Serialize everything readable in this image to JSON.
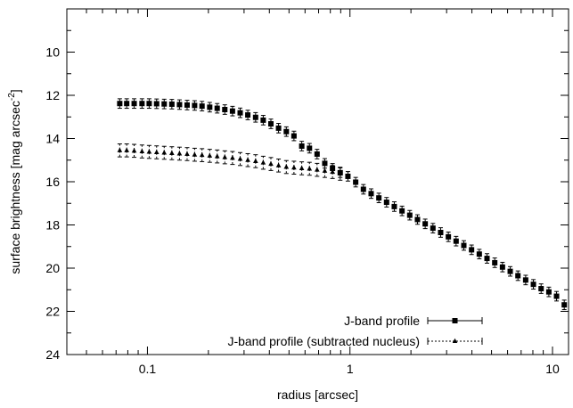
{
  "chart_data": {
    "type": "scatter",
    "xscale": "log",
    "yinverted": true,
    "xlim": [
      0.04,
      12
    ],
    "ylim": [
      24,
      8
    ],
    "grid": false,
    "legend_position": "bottom-right",
    "xlabel": "radius [arcsec]",
    "ylabel_main": "surface brightness [mag arcsec",
    "ylabel_sup": "-2",
    "ylabel_end": "]",
    "xticks": [
      {
        "value": 0.1,
        "label": "0.1"
      },
      {
        "value": 1,
        "label": "1"
      },
      {
        "value": 10,
        "label": "10"
      }
    ],
    "yticks": [
      {
        "value": 10,
        "label": "10"
      },
      {
        "value": 12,
        "label": "12"
      },
      {
        "value": 14,
        "label": "14"
      },
      {
        "value": 16,
        "label": "16"
      },
      {
        "value": 18,
        "label": "18"
      },
      {
        "value": 20,
        "label": "20"
      },
      {
        "value": 22,
        "label": "22"
      },
      {
        "value": 24,
        "label": "24"
      }
    ],
    "series": [
      {
        "name": "J-band profile",
        "marker": "square",
        "line": "solid",
        "error_y": 0.22,
        "points": [
          [
            0.073,
            12.38
          ],
          [
            0.079,
            12.38
          ],
          [
            0.086,
            12.38
          ],
          [
            0.094,
            12.38
          ],
          [
            0.102,
            12.38
          ],
          [
            0.111,
            12.39
          ],
          [
            0.121,
            12.4
          ],
          [
            0.132,
            12.41
          ],
          [
            0.144,
            12.43
          ],
          [
            0.157,
            12.45
          ],
          [
            0.171,
            12.47
          ],
          [
            0.186,
            12.5
          ],
          [
            0.203,
            12.55
          ],
          [
            0.221,
            12.6
          ],
          [
            0.241,
            12.66
          ],
          [
            0.263,
            12.73
          ],
          [
            0.287,
            12.81
          ],
          [
            0.313,
            12.91
          ],
          [
            0.342,
            13.02
          ],
          [
            0.373,
            13.15
          ],
          [
            0.407,
            13.32
          ],
          [
            0.444,
            13.52
          ],
          [
            0.485,
            13.68
          ],
          [
            0.529,
            13.88
          ],
          [
            0.578,
            14.35
          ],
          [
            0.631,
            14.45
          ],
          [
            0.688,
            14.72
          ],
          [
            0.751,
            15.15
          ],
          [
            0.82,
            15.38
          ],
          [
            0.895,
            15.58
          ],
          [
            0.977,
            15.75
          ],
          [
            1.067,
            16.02
          ],
          [
            1.165,
            16.35
          ],
          [
            1.272,
            16.55
          ],
          [
            1.389,
            16.75
          ],
          [
            1.516,
            16.95
          ],
          [
            1.655,
            17.15
          ],
          [
            1.807,
            17.35
          ],
          [
            1.973,
            17.55
          ],
          [
            2.154,
            17.75
          ],
          [
            2.352,
            17.95
          ],
          [
            2.568,
            18.15
          ],
          [
            2.803,
            18.35
          ],
          [
            3.061,
            18.55
          ],
          [
            3.342,
            18.75
          ],
          [
            3.649,
            18.95
          ],
          [
            3.984,
            19.15
          ],
          [
            4.35,
            19.35
          ],
          [
            4.749,
            19.55
          ],
          [
            5.186,
            19.75
          ],
          [
            5.662,
            19.95
          ],
          [
            6.182,
            20.15
          ],
          [
            6.75,
            20.35
          ],
          [
            7.37,
            20.55
          ],
          [
            8.047,
            20.75
          ],
          [
            8.786,
            20.95
          ],
          [
            9.593,
            21.1
          ],
          [
            10.47,
            21.3
          ],
          [
            11.43,
            21.7
          ]
        ]
      },
      {
        "name": "J-band profile (subtracted nucleus)",
        "marker": "triangle",
        "line": "dashed",
        "error_y": 0.3,
        "points": [
          [
            0.073,
            14.55
          ],
          [
            0.079,
            14.55
          ],
          [
            0.086,
            14.57
          ],
          [
            0.094,
            14.6
          ],
          [
            0.102,
            14.62
          ],
          [
            0.111,
            14.64
          ],
          [
            0.121,
            14.66
          ],
          [
            0.132,
            14.68
          ],
          [
            0.144,
            14.7
          ],
          [
            0.157,
            14.72
          ],
          [
            0.171,
            14.75
          ],
          [
            0.186,
            14.77
          ],
          [
            0.203,
            14.8
          ],
          [
            0.221,
            14.83
          ],
          [
            0.241,
            14.87
          ],
          [
            0.263,
            14.9
          ],
          [
            0.287,
            14.95
          ],
          [
            0.313,
            15.0
          ],
          [
            0.342,
            15.05
          ],
          [
            0.373,
            15.12
          ],
          [
            0.407,
            15.18
          ],
          [
            0.444,
            15.25
          ],
          [
            0.485,
            15.32
          ],
          [
            0.529,
            15.35
          ],
          [
            0.578,
            15.38
          ],
          [
            0.631,
            15.4
          ],
          [
            0.688,
            15.45
          ],
          [
            0.751,
            15.5
          ],
          [
            0.82,
            15.55
          ],
          [
            0.895,
            15.63
          ]
        ]
      }
    ]
  }
}
